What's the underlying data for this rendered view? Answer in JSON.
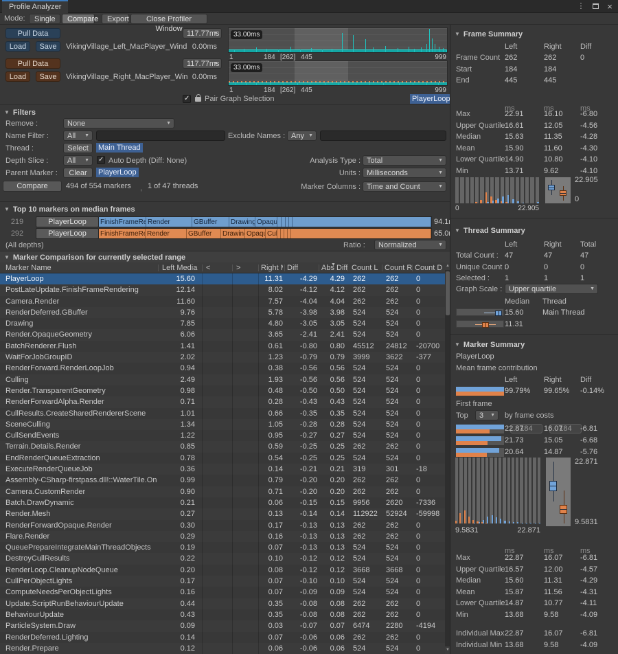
{
  "window": {
    "tab": "Profile Analyzer"
  },
  "toolbar": {
    "mode_label": "Mode:",
    "single": "Single",
    "compare": "Compare",
    "export": "Export",
    "close_profiler": "Close Profiler Window"
  },
  "datasets": {
    "left": {
      "pull": "Pull Data",
      "load": "Load",
      "save": "Save",
      "name": "VikingVillage_Left_MacPlayer_Wind",
      "range_max": "117.77ms",
      "range_min": "0.00ms"
    },
    "right": {
      "pull": "Pull Data",
      "load": "Load",
      "save": "Save",
      "name": "VikingVillage_Right_MacPlayer_Win",
      "range_max": "117.77ms",
      "range_min": "0.00ms"
    }
  },
  "graphs": {
    "badge": "33.00ms",
    "axis": [
      "1",
      "184",
      "[262]",
      "445",
      "999"
    ],
    "pair_checkbox": "Pair Graph Selection",
    "selected_marker": "PlayerLoop",
    "left_spikes": [
      [
        8,
        3
      ],
      [
        22,
        5
      ],
      [
        40,
        7
      ],
      [
        55,
        5
      ],
      [
        72,
        4
      ],
      [
        90,
        8
      ],
      [
        104,
        4
      ],
      [
        120,
        6
      ],
      [
        136,
        4
      ],
      [
        150,
        5
      ],
      [
        165,
        28
      ],
      [
        181,
        25
      ],
      [
        199,
        19
      ],
      [
        210,
        7
      ],
      [
        228,
        9
      ],
      [
        246,
        6
      ],
      [
        262,
        8
      ],
      [
        270,
        5
      ],
      [
        280,
        7
      ],
      [
        288,
        12
      ],
      [
        292,
        34
      ],
      [
        296,
        20
      ],
      [
        300,
        12
      ],
      [
        306,
        8
      ],
      [
        312,
        6
      ],
      [
        317,
        4
      ]
    ],
    "right_spikes": [
      [
        10,
        3
      ],
      [
        25,
        4
      ],
      [
        40,
        3
      ],
      [
        60,
        4
      ],
      [
        80,
        3
      ],
      [
        100,
        4
      ],
      [
        118,
        3
      ],
      [
        140,
        4
      ],
      [
        160,
        3
      ],
      [
        185,
        4
      ],
      [
        205,
        3
      ],
      [
        225,
        4
      ],
      [
        248,
        3
      ],
      [
        268,
        4
      ],
      [
        288,
        3
      ],
      [
        305,
        4
      ]
    ]
  },
  "filters": {
    "title": "Filters",
    "remove_label": "Remove :",
    "remove_value": "None",
    "name_filter_label": "Name Filter :",
    "name_filter_mode": "All",
    "name_filter_value": "",
    "exclude_label": "Exclude Names :",
    "exclude_mode": "Any",
    "exclude_value": "",
    "thread_label": "Thread :",
    "thread_button": "Select",
    "thread_value": "Main Thread",
    "depth_label": "Depth Slice :",
    "depth_mode": "All",
    "auto_depth": "Auto Depth (Diff: None)",
    "analysis_label": "Analysis Type :",
    "analysis_value": "Total",
    "parent_label": "Parent Marker :",
    "parent_button": "Clear",
    "parent_value": "PlayerLoop",
    "units_label": "Units :",
    "units_value": "Milliseconds",
    "compare_button": "Compare",
    "marker_count": "494 of 554 markers",
    "comma": ",",
    "thread_count": "1 of 47 threads",
    "columns_label": "Marker Columns :",
    "columns_value": "Time and Count"
  },
  "top10": {
    "title": "Top 10 markers on median frames",
    "all_depths": "(All depths)",
    "ratio_label": "Ratio :",
    "ratio_value": "Normalized",
    "rows": [
      {
        "frame": "219",
        "color": "blue",
        "button": "PlayerLoop",
        "time": "94.1ms",
        "segments": [
          [
            "FinishFrameRendering",
            69
          ],
          [
            "Render",
            67
          ],
          [
            "GBuffer",
            54
          ],
          [
            "Drawing",
            38
          ],
          [
            "OpaqueGeometry",
            32
          ],
          [
            "",
            6
          ],
          [
            "",
            6
          ],
          [
            "",
            5
          ],
          [
            "",
            5
          ],
          [
            "",
            202
          ]
        ]
      },
      {
        "frame": "292",
        "color": "orange",
        "button": "PlayerLoop",
        "time": "65.0ms",
        "segments": [
          [
            "FinishFrameRendering",
            68
          ],
          [
            "Render",
            60
          ],
          [
            "GBuffer",
            50
          ],
          [
            "Drawing",
            35
          ],
          [
            "OpaqueGeom",
            30
          ],
          [
            "Culling",
            17
          ],
          [
            "",
            5
          ],
          [
            "",
            5
          ],
          [
            "",
            5
          ],
          [
            "",
            5
          ],
          [
            "",
            204
          ]
        ]
      }
    ]
  },
  "comparison": {
    "title": "Marker Comparison for currently selected range",
    "columns": [
      "Marker Name",
      "Left Median",
      "<",
      ">",
      "Right Median",
      "Diff",
      "Abs Diff",
      "Count L",
      "Count R",
      "Count D"
    ],
    "max_left": 15.6,
    "selected_index": 0,
    "rows": [
      [
        "PlayerLoop",
        "15.60",
        "11.31",
        "-4.29",
        "4.29",
        "262",
        "262",
        "0"
      ],
      [
        "PostLateUpdate.FinishFrameRendering",
        "12.14",
        "8.02",
        "-4.12",
        "4.12",
        "262",
        "262",
        "0"
      ],
      [
        "Camera.Render",
        "11.60",
        "7.57",
        "-4.04",
        "4.04",
        "262",
        "262",
        "0"
      ],
      [
        "RenderDeferred.GBuffer",
        "9.76",
        "5.78",
        "-3.98",
        "3.98",
        "524",
        "524",
        "0"
      ],
      [
        "Drawing",
        "7.85",
        "4.80",
        "-3.05",
        "3.05",
        "524",
        "524",
        "0"
      ],
      [
        "Render.OpaqueGeometry",
        "6.06",
        "3.65",
        "-2.41",
        "2.41",
        "524",
        "524",
        "0"
      ],
      [
        "BatchRenderer.Flush",
        "1.41",
        "0.61",
        "-0.80",
        "0.80",
        "45512",
        "24812",
        "-20700"
      ],
      [
        "WaitForJobGroupID",
        "2.02",
        "1.23",
        "-0.79",
        "0.79",
        "3999",
        "3622",
        "-377"
      ],
      [
        "RenderForward.RenderLoopJob",
        "0.94",
        "0.38",
        "-0.56",
        "0.56",
        "524",
        "524",
        "0"
      ],
      [
        "Culling",
        "2.49",
        "1.93",
        "-0.56",
        "0.56",
        "524",
        "524",
        "0"
      ],
      [
        "Render.TransparentGeometry",
        "0.98",
        "0.48",
        "-0.50",
        "0.50",
        "524",
        "524",
        "0"
      ],
      [
        "RenderForwardAlpha.Render",
        "0.71",
        "0.28",
        "-0.43",
        "0.43",
        "524",
        "524",
        "0"
      ],
      [
        "CullResults.CreateSharedRendererScene",
        "1.01",
        "0.66",
        "-0.35",
        "0.35",
        "524",
        "524",
        "0"
      ],
      [
        "SceneCulling",
        "1.34",
        "1.05",
        "-0.28",
        "0.28",
        "524",
        "524",
        "0"
      ],
      [
        "CullSendEvents",
        "1.22",
        "0.95",
        "-0.27",
        "0.27",
        "524",
        "524",
        "0"
      ],
      [
        "Terrain.Details.Render",
        "0.85",
        "0.59",
        "-0.25",
        "0.25",
        "262",
        "262",
        "0"
      ],
      [
        "EndRenderQueueExtraction",
        "0.78",
        "0.54",
        "-0.25",
        "0.25",
        "524",
        "524",
        "0"
      ],
      [
        "ExecuteRenderQueueJob",
        "0.36",
        "0.14",
        "-0.21",
        "0.21",
        "319",
        "301",
        "-18"
      ],
      [
        "Assembly-CSharp-firstpass.dll!::WaterTile.OnWillRenderObject",
        "0.99",
        "0.79",
        "-0.20",
        "0.20",
        "262",
        "262",
        "0"
      ],
      [
        "Camera.CustomRender",
        "0.90",
        "0.71",
        "-0.20",
        "0.20",
        "262",
        "262",
        "0"
      ],
      [
        "Batch.DrawDynamic",
        "0.21",
        "0.06",
        "-0.15",
        "0.15",
        "9956",
        "2620",
        "-7336"
      ],
      [
        "Render.Mesh",
        "0.27",
        "0.13",
        "-0.14",
        "0.14",
        "112922",
        "52924",
        "-59998"
      ],
      [
        "RenderForwardOpaque.Render",
        "0.30",
        "0.17",
        "-0.13",
        "0.13",
        "262",
        "262",
        "0"
      ],
      [
        "Flare.Render",
        "0.29",
        "0.16",
        "-0.13",
        "0.13",
        "262",
        "262",
        "0"
      ],
      [
        "QueuePrepareIntegrateMainThreadObjects",
        "0.19",
        "0.07",
        "-0.13",
        "0.13",
        "524",
        "524",
        "0"
      ],
      [
        "DestroyCullResults",
        "0.22",
        "0.10",
        "-0.12",
        "0.12",
        "524",
        "524",
        "0"
      ],
      [
        "RenderLoop.CleanupNodeQueue",
        "0.20",
        "0.08",
        "-0.12",
        "0.12",
        "3668",
        "3668",
        "0"
      ],
      [
        "CullPerObjectLights",
        "0.17",
        "0.07",
        "-0.10",
        "0.10",
        "524",
        "524",
        "0"
      ],
      [
        "ComputeNeedsPerObjectLights",
        "0.16",
        "0.07",
        "-0.09",
        "0.09",
        "524",
        "524",
        "0"
      ],
      [
        "Update.ScriptRunBehaviourUpdate",
        "0.44",
        "0.35",
        "-0.08",
        "0.08",
        "262",
        "262",
        "0"
      ],
      [
        "BehaviourUpdate",
        "0.43",
        "0.35",
        "-0.08",
        "0.08",
        "262",
        "262",
        "0"
      ],
      [
        "ParticleSystem.Draw",
        "0.09",
        "0.03",
        "-0.07",
        "0.07",
        "6474",
        "2280",
        "-4194"
      ],
      [
        "RenderDeferred.Lighting",
        "0.14",
        "0.07",
        "-0.06",
        "0.06",
        "262",
        "262",
        "0"
      ],
      [
        "Render.Prepare",
        "0.12",
        "0.06",
        "-0.06",
        "0.06",
        "524",
        "524",
        "0"
      ]
    ]
  },
  "frame_summary": {
    "title": "Frame Summary",
    "header": [
      "",
      "Left",
      "Right",
      "Diff"
    ],
    "info_rows": [
      [
        "Frame Count",
        "262",
        "262",
        "0"
      ],
      [
        "Start",
        "184",
        "184",
        ""
      ],
      [
        "End",
        "445",
        "445",
        ""
      ]
    ],
    "unit_row": [
      "",
      "ms",
      "ms",
      "ms"
    ],
    "stat_rows": [
      [
        "Max",
        "22.91",
        "16.10",
        "-6.80"
      ],
      [
        "Upper Quartile",
        "16.61",
        "12.05",
        "-4.56"
      ],
      [
        "Median",
        "15.63",
        "11.35",
        "-4.28"
      ],
      [
        "Mean",
        "15.90",
        "11.60",
        "-4.30"
      ],
      [
        "Lower Quartile",
        "14.90",
        "10.80",
        "-4.10"
      ],
      [
        "Min",
        "13.71",
        "9.62",
        "-4.10"
      ]
    ],
    "hist": {
      "min_label": "0",
      "max_label": "22.905",
      "orange": [
        0,
        0,
        0,
        0,
        2,
        5,
        16,
        10,
        5,
        3,
        2,
        0,
        0,
        0,
        0,
        0,
        0
      ],
      "blue": [
        0,
        0,
        0,
        0,
        0,
        0,
        2,
        4,
        7,
        10,
        12,
        6,
        3,
        1,
        0,
        0,
        2
      ]
    },
    "box_top_label": "22.905",
    "box_bottom_label": "0"
  },
  "thread_summary": {
    "title": "Thread Summary",
    "header": [
      "",
      "Left",
      "Right",
      "Total"
    ],
    "rows": [
      [
        "Total Count :",
        "47",
        "47",
        "47"
      ],
      [
        "Unique Count :",
        "0",
        "0",
        "0"
      ],
      [
        "Selected :",
        "1",
        "1",
        "1"
      ]
    ],
    "graph_scale_label": "Graph Scale :",
    "graph_scale_value": "Upper quartile",
    "table_header": [
      "Median",
      "Thread"
    ],
    "threads": [
      {
        "median": "15.60",
        "name": "Main Thread"
      },
      {
        "median": "11.31",
        "name": ""
      }
    ]
  },
  "marker_summary": {
    "title": "Marker Summary",
    "marker": "PlayerLoop",
    "subtitle": "Mean frame contribution",
    "header": [
      "",
      "Left",
      "Right",
      "Diff"
    ],
    "contribution": [
      "",
      "99.79%",
      "99.65%",
      "-0.14%"
    ],
    "first_frame_label": "First frame",
    "first_frames": [
      "184",
      "184"
    ],
    "top_label_pre": "Top",
    "top_value": "3",
    "top_label_post": "by frame costs",
    "top_rows": [
      [
        "",
        "22.87",
        "16.07",
        "-6.81"
      ],
      [
        "",
        "21.73",
        "15.05",
        "-6.68"
      ],
      [
        "",
        "20.64",
        "14.87",
        "-5.76"
      ]
    ],
    "hist": {
      "min_label": "9.5831",
      "max_label": "22.871",
      "orange": [
        4,
        15,
        19,
        10,
        5,
        3,
        2,
        1,
        0,
        0,
        0,
        0,
        0,
        0,
        0,
        0,
        0,
        0,
        0,
        0
      ],
      "blue": [
        0,
        0,
        0,
        0,
        1,
        2,
        5,
        10,
        12,
        9,
        7,
        4,
        3,
        2,
        2,
        1,
        1,
        1,
        1,
        1
      ]
    },
    "box_top_label": "22.871",
    "box_bottom_label": "9.5831",
    "unit_row": [
      "",
      "ms",
      "ms",
      "ms"
    ],
    "stat_rows": [
      [
        "Max",
        "22.87",
        "16.07",
        "-6.81"
      ],
      [
        "Upper Quartile",
        "16.57",
        "12.00",
        "-4.57"
      ],
      [
        "Median",
        "15.60",
        "11.31",
        "-4.29"
      ],
      [
        "Mean",
        "15.87",
        "11.56",
        "-4.31"
      ],
      [
        "Lower Quartile",
        "14.87",
        "10.77",
        "-4.11"
      ],
      [
        "Min",
        "13.68",
        "9.58",
        "-4.09"
      ]
    ],
    "individual_rows": [
      [
        "Individual Max",
        "22.87",
        "16.07",
        "-6.81"
      ],
      [
        "Individual Min",
        "13.68",
        "9.58",
        "-4.09"
      ]
    ],
    "max_value": 22.905
  },
  "colors": {
    "accent_blue": "#3a79bb",
    "bar_blue": "#71a3d9",
    "bar_orange": "#e0824a",
    "teal": "#14a7a5",
    "selection_row": "#2d5c8e",
    "chip": "#3e6194"
  }
}
